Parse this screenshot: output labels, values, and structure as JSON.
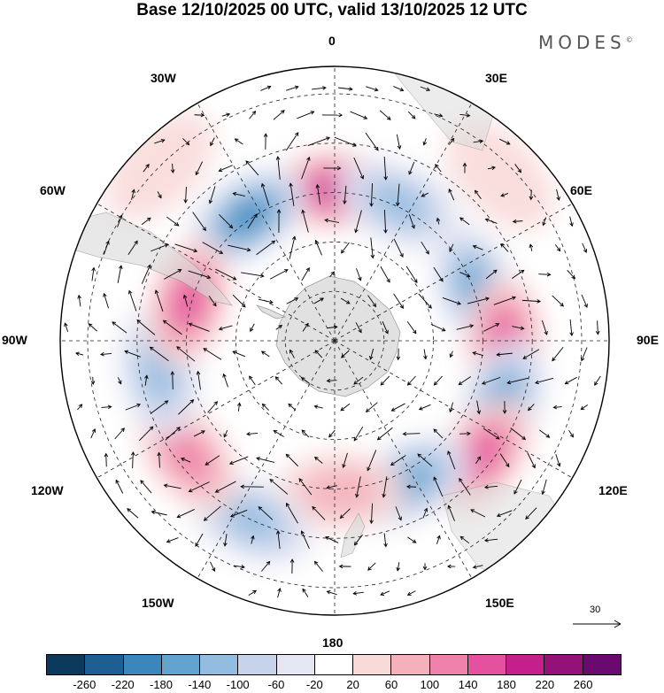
{
  "title": "Base 12/10/2025 00 UTC, valid 13/10/2025 12 UTC",
  "brand": "MODES",
  "brand_mark": "©",
  "longitudes": {
    "n": "0",
    "ne30": "30E",
    "ne60": "60E",
    "e90": "90E",
    "se120": "120E",
    "se150": "150E",
    "s": "180",
    "sw150": "150W",
    "sw120": "120W",
    "w90": "90W",
    "nw60": "60W",
    "nw30": "30W"
  },
  "reference_vector": {
    "value": "30"
  },
  "legend": {
    "colors": [
      "#0b3a5c",
      "#1d5f93",
      "#3a86bd",
      "#62a3d0",
      "#93bde0",
      "#c6d3eb",
      "#e4e6f3",
      "#ffffff",
      "#f8dad9",
      "#f4b1bc",
      "#ef82aa",
      "#e3519f",
      "#c41f8b",
      "#941278",
      "#6a0a6e"
    ],
    "ticks": [
      "-260",
      "-220",
      "-180",
      "-140",
      "-100",
      "-60",
      "-20",
      "20",
      "60",
      "100",
      "140",
      "180",
      "220",
      "260"
    ]
  },
  "anomalies": [
    {
      "lon": 0,
      "r": 0.55,
      "value": 200
    },
    {
      "lon": -35,
      "r": 0.55,
      "value": -180
    },
    {
      "lon": 25,
      "r": 0.55,
      "value": -120
    },
    {
      "lon": 70,
      "r": 0.55,
      "value": -140
    },
    {
      "lon": 90,
      "r": 0.62,
      "value": 170
    },
    {
      "lon": 110,
      "r": 0.65,
      "value": -160
    },
    {
      "lon": 128,
      "r": 0.68,
      "value": 140
    },
    {
      "lon": 152,
      "r": 0.58,
      "value": -150
    },
    {
      "lon": 178,
      "r": 0.55,
      "value": 80
    },
    {
      "lon": -155,
      "r": 0.72,
      "value": -130
    },
    {
      "lon": -128,
      "r": 0.68,
      "value": 100
    },
    {
      "lon": -100,
      "r": 0.65,
      "value": -120
    },
    {
      "lon": -75,
      "r": 0.55,
      "value": 160
    },
    {
      "lon": 45,
      "r": 0.85,
      "value": 30
    },
    {
      "lon": -45,
      "r": 0.9,
      "value": 40
    }
  ]
}
